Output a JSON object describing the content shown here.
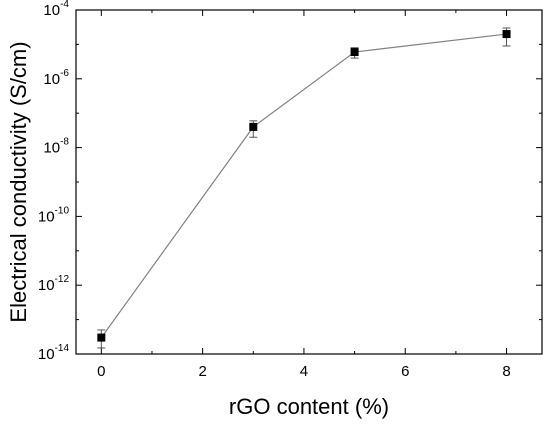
{
  "chart_data": {
    "type": "scatter",
    "xlabel": "rGO content (%)",
    "ylabel": "Electrical conductivity (S/cm)",
    "xlim": [
      -0.5,
      8.7
    ],
    "ylim_exponent": [
      -14,
      -4
    ],
    "yscale": "log",
    "x_ticks": [
      0,
      2,
      4,
      6,
      8
    ],
    "y_tick_labels": [
      {
        "base": "10",
        "exp": "-4",
        "exponent": -4
      },
      {
        "base": "10",
        "exp": "-6",
        "exponent": -6
      },
      {
        "base": "10",
        "exp": "-8",
        "exponent": -8
      },
      {
        "base": "10",
        "exp": "-10",
        "exponent": -10
      },
      {
        "base": "10",
        "exp": "-12",
        "exponent": -12
      },
      {
        "base": "10",
        "exp": "-14",
        "exponent": -14
      }
    ],
    "series": [
      {
        "line_color": "#808080",
        "marker": "square",
        "marker_color": "#000000",
        "points": [
          {
            "x": 0,
            "y": 3e-14,
            "y_low": 1.5e-14,
            "y_high": 5e-14
          },
          {
            "x": 3,
            "y": 4e-08,
            "y_low": 2e-08,
            "y_high": 6e-08
          },
          {
            "x": 5,
            "y": 6e-06,
            "y_low": 4e-06,
            "y_high": 8e-06
          },
          {
            "x": 8,
            "y": 2e-05,
            "y_low": 9e-06,
            "y_high": 3e-05
          }
        ]
      }
    ]
  }
}
